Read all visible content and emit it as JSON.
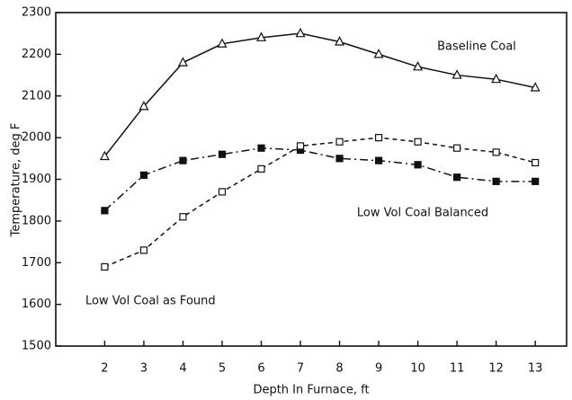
{
  "chart_data": {
    "type": "line",
    "x_label": "Depth In Furnace, ft",
    "y_label": "Temperature, deg F",
    "x": [
      2,
      3,
      4,
      5,
      6,
      7,
      8,
      9,
      10,
      11,
      12,
      13
    ],
    "series": [
      {
        "name": "Baseline Coal",
        "color": "#111111",
        "marker": "triangle",
        "linestyle": "solid",
        "values": [
          1955,
          2075,
          2180,
          2225,
          2240,
          2250,
          2230,
          2200,
          2170,
          2150,
          2140,
          2120
        ]
      },
      {
        "name": "Low Vol Coal Balanced",
        "color": "#111111",
        "marker": "filled-square",
        "linestyle": "dashdot",
        "values": [
          1825,
          1910,
          1945,
          1960,
          1975,
          1970,
          1950,
          1945,
          1935,
          1905,
          1895,
          1895
        ]
      },
      {
        "name": "Low Vol Coal as Found",
        "color": "#111111",
        "marker": "open-square",
        "linestyle": "dashed",
        "values": [
          1690,
          1730,
          1810,
          1870,
          1925,
          1980,
          1990,
          2000,
          1990,
          1975,
          1965,
          1940
        ]
      }
    ],
    "xlim": [
      0.75,
      13.8
    ],
    "ylim": [
      1500,
      2300
    ],
    "xticks": [
      2,
      3,
      4,
      5,
      6,
      7,
      8,
      9,
      10,
      11,
      12,
      13
    ],
    "yticks": [
      1500,
      1600,
      1700,
      1800,
      1900,
      2000,
      2100,
      2200,
      2300
    ],
    "grid": false
  }
}
